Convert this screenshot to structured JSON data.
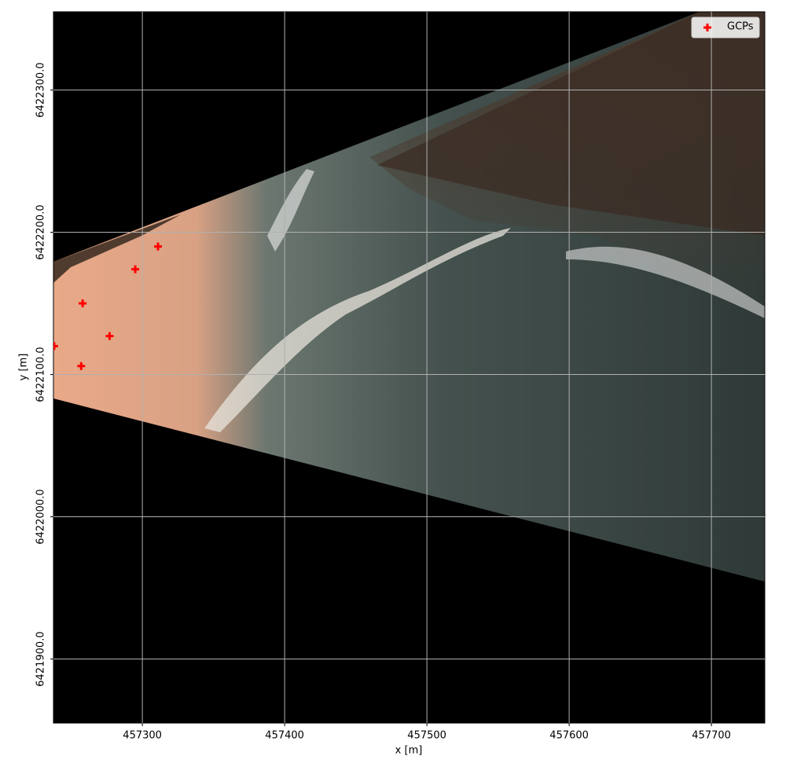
{
  "chart_data": {
    "type": "scatter",
    "xlabel": "x [m]",
    "ylabel": "y [m]",
    "series": [
      {
        "name": "GCPs",
        "color": "#ff0000",
        "x": [
          457311,
          457295,
          457258,
          457277,
          457257,
          457238
        ],
        "values": [
          6422190,
          6422174,
          6422150,
          6422127,
          6422106,
          6422120
        ]
      }
    ],
    "xlim": [
      457237.5,
      457737.5
    ],
    "xticks": [
      457300,
      457400,
      457500,
      457600,
      457700
    ],
    "ylim": [
      6421855,
      6422355
    ],
    "yticks": [
      {
        "value": 6421900,
        "label": "6421900.0"
      },
      {
        "value": 6422000,
        "label": "6422000.0"
      },
      {
        "value": 6422100,
        "label": "6422100.0"
      },
      {
        "value": 6422200,
        "label": "6422200.0"
      },
      {
        "value": 6422300,
        "label": "6422300.0"
      }
    ],
    "grid": true,
    "legend": "upper right"
  }
}
